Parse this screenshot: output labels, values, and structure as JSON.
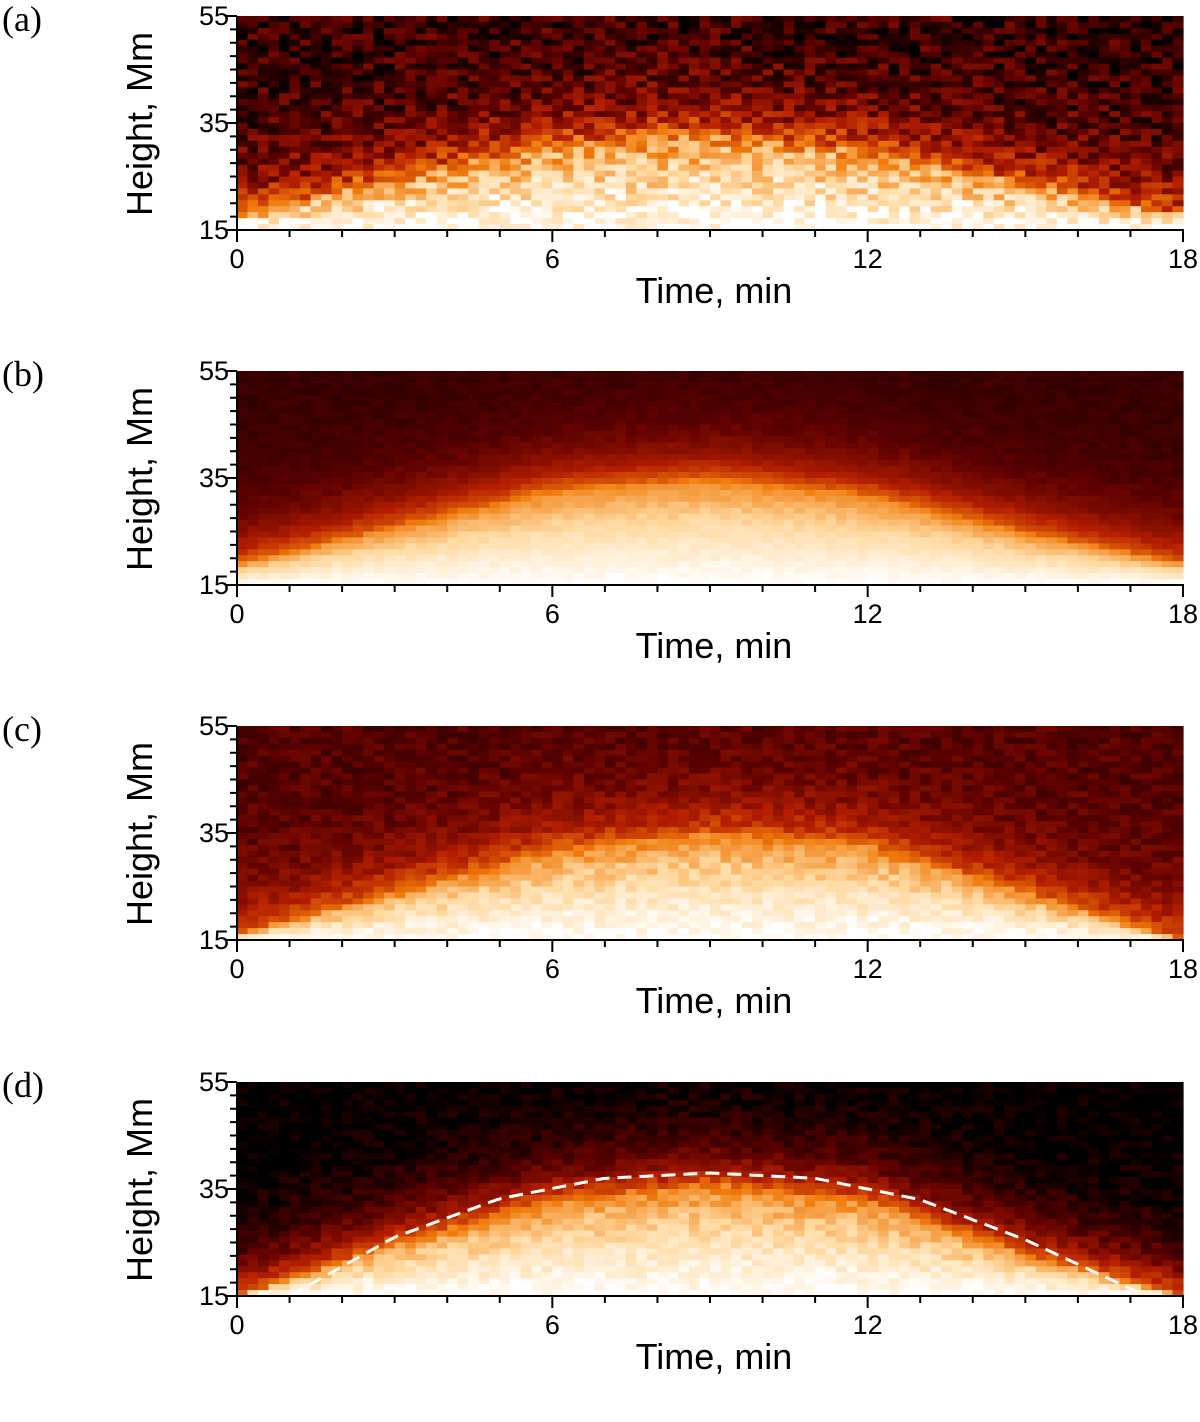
{
  "figure": {
    "panels": [
      {
        "label": "(a)"
      },
      {
        "label": "(b)"
      },
      {
        "label": "(c)"
      },
      {
        "label": "(d)"
      }
    ]
  },
  "colors": {
    "colormap": [
      "#000000",
      "#5a0000",
      "#b41e00",
      "#f07a0a",
      "#ffd9a0",
      "#ffffff"
    ],
    "axis": "#000000",
    "fit_curve": "#ffffff"
  },
  "chart_data": [
    {
      "type": "heatmap",
      "panel": "(a)",
      "xlabel": "Time, min",
      "ylabel": "Height, Mm",
      "xlim": [
        0,
        18
      ],
      "ylim": [
        15,
        55
      ],
      "xticks": [
        0,
        6,
        12,
        18
      ],
      "yticks": [
        15,
        35,
        55
      ],
      "intensity_front": {
        "time": [
          0,
          3,
          6,
          9,
          12,
          15,
          18
        ],
        "height": [
          18,
          25,
          31,
          33,
          30,
          24,
          18
        ]
      },
      "noise": "high",
      "background_level": 0.12
    },
    {
      "type": "heatmap",
      "panel": "(b)",
      "xlabel": "Time, min",
      "ylabel": "Height, Mm",
      "xlim": [
        0,
        18
      ],
      "ylim": [
        15,
        55
      ],
      "xticks": [
        0,
        6,
        12,
        18
      ],
      "yticks": [
        15,
        35,
        55
      ],
      "intensity_front": {
        "time": [
          0,
          3,
          6,
          9,
          12,
          15,
          18
        ],
        "height": [
          19,
          26,
          33,
          35,
          32,
          25,
          19
        ]
      },
      "noise": "low",
      "background_level": 0.12
    },
    {
      "type": "heatmap",
      "panel": "(c)",
      "xlabel": "Time, min",
      "ylabel": "Height, Mm",
      "xlim": [
        0,
        18
      ],
      "ylim": [
        15,
        55
      ],
      "xticks": [
        0,
        6,
        12,
        18
      ],
      "yticks": [
        15,
        35,
        55
      ],
      "intensity_front": {
        "time": [
          0,
          3,
          6,
          9,
          12,
          15,
          18
        ],
        "height": [
          16,
          24,
          32,
          35,
          33,
          24,
          15
        ]
      },
      "noise": "medium",
      "background_level": 0.18
    },
    {
      "type": "heatmap",
      "panel": "(d)",
      "xlabel": "Time, min",
      "ylabel": "Height, Mm",
      "xlim": [
        0,
        18
      ],
      "ylim": [
        15,
        55
      ],
      "xticks": [
        0,
        6,
        12,
        18
      ],
      "yticks": [
        15,
        35,
        55
      ],
      "intensity_front": {
        "time": [
          0,
          3,
          6,
          9,
          12,
          15,
          18
        ],
        "height": [
          15,
          25,
          33,
          36,
          33,
          23,
          15
        ]
      },
      "noise": "medium",
      "background_level": 0.0,
      "fit_curve": {
        "style": "dashed",
        "x": [
          1.0,
          3.0,
          5.0,
          7.0,
          9.0,
          11.0,
          13.0,
          15.0,
          17.3
        ],
        "y": [
          15.0,
          26.0,
          33.2,
          37.0,
          38.0,
          37.0,
          33.0,
          25.5,
          15.0
        ]
      }
    }
  ]
}
